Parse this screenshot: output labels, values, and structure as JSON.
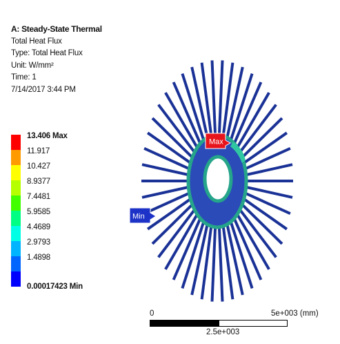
{
  "info": {
    "title": "A: Steady-State Thermal",
    "result_name": "Total Heat Flux",
    "type": "Type: Total Heat Flux",
    "unit": "Unit: W/mm²",
    "time": "Time: 1",
    "date": "7/14/2017 3:44 PM"
  },
  "legend": {
    "labels": [
      "13.406 Max",
      "11.917",
      "10.427",
      "8.9377",
      "7.4481",
      "5.9585",
      "4.4689",
      "2.9793",
      "1.4898",
      "0.00017423 Min"
    ],
    "colors": [
      "#ff0000",
      "#ff9a00",
      "#ffff00",
      "#b6ff00",
      "#42ff00",
      "#00ff82",
      "#00ffe4",
      "#00b4ff",
      "#0066ff",
      "#0000ff"
    ]
  },
  "probes": {
    "max_label": "Max",
    "min_label": "Min"
  },
  "scale": {
    "zero": "0",
    "end": "5e+003 (mm)",
    "mid": "2.5e+003"
  },
  "model_colors": {
    "fin": "#1a3296",
    "core": "#2a4bb8",
    "core_edge": "#25a58a"
  }
}
